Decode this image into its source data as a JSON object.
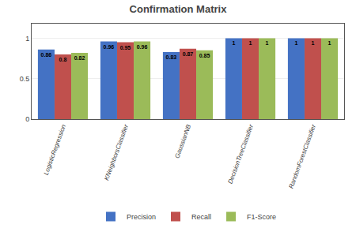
{
  "chart_data": {
    "type": "bar",
    "title": "Confirmation Matrix",
    "categories": [
      "LogisticRegression",
      "KNeighborsClassifier",
      "GaussianNB",
      "DecisionTreeClassifier",
      "RandomForestClassifier"
    ],
    "series": [
      {
        "name": "Precision",
        "color": "#4472c4",
        "values": [
          0.86,
          0.96,
          0.83,
          1.0,
          1.0
        ]
      },
      {
        "name": "Recall",
        "color": "#c0504d",
        "values": [
          0.8,
          0.95,
          0.87,
          1.0,
          1.0
        ]
      },
      {
        "name": "F1-Score",
        "color": "#9bbb59",
        "values": [
          0.82,
          0.96,
          0.85,
          1.0,
          1.0
        ]
      }
    ],
    "ylim": [
      0,
      1.18
    ],
    "yticks": [
      0,
      0.5,
      1
    ],
    "grid": true,
    "data_labels": true,
    "legend": "bottom"
  }
}
